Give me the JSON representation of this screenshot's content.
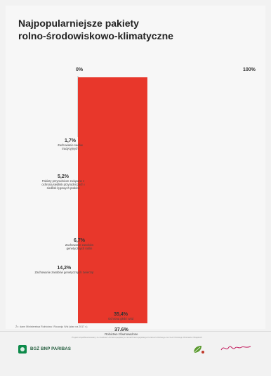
{
  "title": {
    "line1": "Najpopularniejsze pakiety",
    "line2": "rolno-środowiskowo-klimatyczne"
  },
  "scale": {
    "start_label": "0%",
    "end_label": "100%"
  },
  "chart_data": {
    "type": "bar",
    "layout": "cascading cumulative waterfall bars from 0% to 100%",
    "series": [
      {
        "name": "",
        "values": [
          1.7,
          5.2,
          6.7,
          14.2,
          35.4,
          37.6
        ]
      }
    ],
    "categories": [
      "Zachowanie sadów tradycyjnych",
      "Pakiety przyrodnicze związane z ochroną siedlisk przyrodniczych i siedlisk lęgowych ptaków",
      "Zachowanie zasobów genetycznych roślin",
      "Zachowanie zasobów genetycznych zwierząt",
      "Ochrona gleb i wód",
      "Rolnictwo zrównoważone"
    ],
    "value_labels": [
      "1,7%",
      "5,2%",
      "6,7%",
      "14,2%",
      "35,4%",
      "37,6%"
    ],
    "colors": [
      "#c8c8c8",
      "#9fb8c9",
      "#7fb23a",
      "#d7dc1e",
      "#f08a16",
      "#e8372b"
    ],
    "xlim": [
      0,
      100
    ]
  },
  "footnote": "Źr.: dane Ministerstwa Rolnictwa i Rozwoju Wsi (stan na 2017 r.)",
  "footer": {
    "note": "Projekt współfinansowany ze środków Unii Europejskiej w ramach Europejskiego Funduszu Rolnego na rzecz Rozwoju Obszarów Wiejskich",
    "bank_name": "BGŻ BNP PARIBAS"
  }
}
